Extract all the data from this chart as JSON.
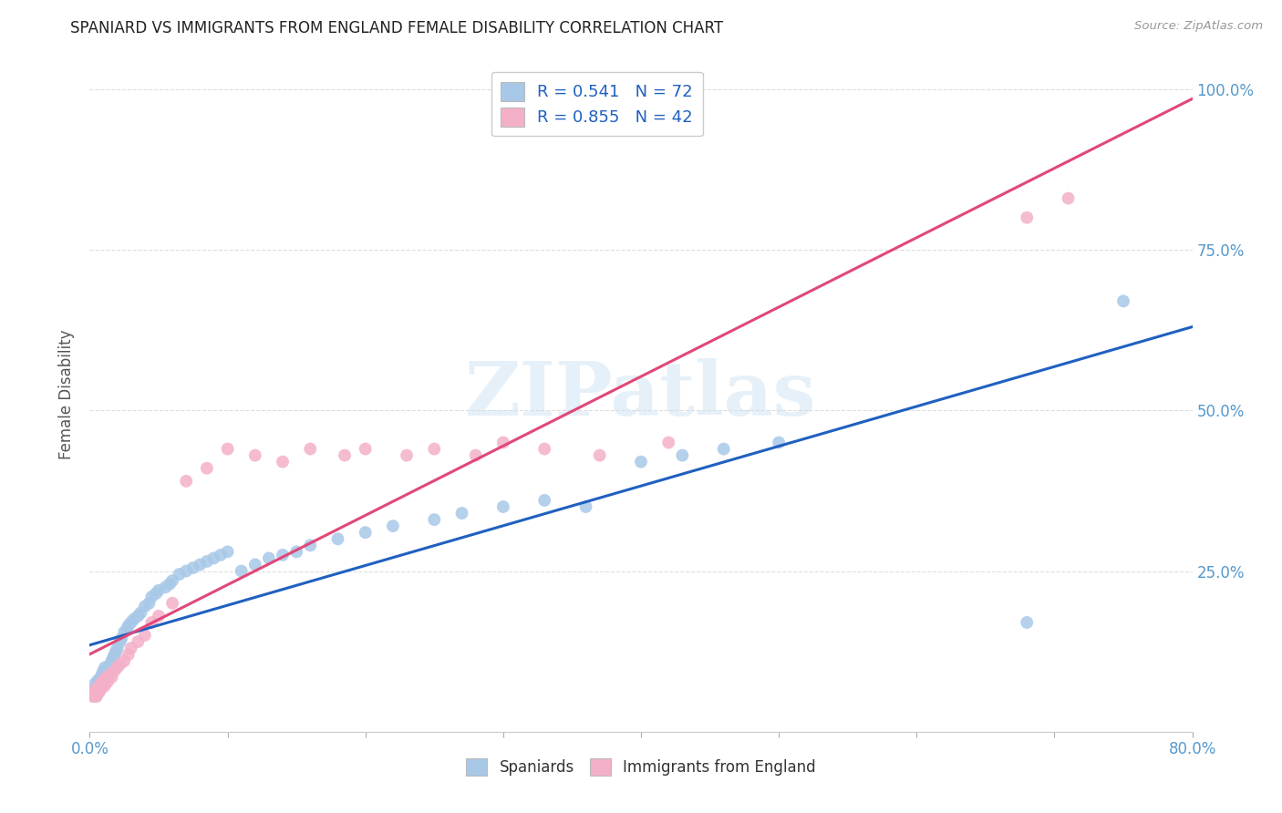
{
  "title": "SPANIARD VS IMMIGRANTS FROM ENGLAND FEMALE DISABILITY CORRELATION CHART",
  "source": "Source: ZipAtlas.com",
  "ylabel": "Female Disability",
  "xlim": [
    0.0,
    0.8
  ],
  "ylim": [
    0.0,
    1.05
  ],
  "ytick_values": [
    0.0,
    0.25,
    0.5,
    0.75,
    1.0
  ],
  "ytick_labels": [
    "",
    "25.0%",
    "50.0%",
    "75.0%",
    "100.0%"
  ],
  "xtick_values": [
    0.0,
    0.1,
    0.2,
    0.3,
    0.4,
    0.5,
    0.6,
    0.7,
    0.8
  ],
  "xtick_labels": [
    "0.0%",
    "",
    "",
    "",
    "",
    "",
    "",
    "",
    "80.0%"
  ],
  "spaniards_color": "#a8c8e8",
  "immigrants_color": "#f4b0c8",
  "spaniards_line_color": "#2060c0",
  "immigrants_line_color": "#e04878",
  "legend_R_spaniards": "0.541",
  "legend_N_spaniards": "72",
  "legend_R_immigrants": "0.855",
  "legend_N_immigrants": "42",
  "watermark": "ZIPatlas",
  "background_color": "#ffffff",
  "axis_text_color": "#5599cc",
  "title_color": "#222222",
  "ylabel_color": "#555555",
  "grid_color": "#dddddd",
  "spaniards_x": [
    0.002,
    0.003,
    0.004,
    0.004,
    0.005,
    0.005,
    0.006,
    0.006,
    0.007,
    0.007,
    0.008,
    0.008,
    0.009,
    0.009,
    0.01,
    0.01,
    0.011,
    0.011,
    0.012,
    0.013,
    0.014,
    0.015,
    0.016,
    0.017,
    0.018,
    0.019,
    0.02,
    0.022,
    0.023,
    0.025,
    0.027,
    0.028,
    0.03,
    0.032,
    0.035,
    0.037,
    0.04,
    0.043,
    0.045,
    0.048,
    0.05,
    0.055,
    0.058,
    0.06,
    0.065,
    0.07,
    0.075,
    0.08,
    0.085,
    0.09,
    0.095,
    0.1,
    0.11,
    0.12,
    0.13,
    0.14,
    0.15,
    0.16,
    0.18,
    0.2,
    0.22,
    0.25,
    0.27,
    0.3,
    0.33,
    0.36,
    0.4,
    0.43,
    0.46,
    0.5,
    0.68,
    0.75
  ],
  "spaniards_y": [
    0.06,
    0.065,
    0.055,
    0.075,
    0.06,
    0.07,
    0.062,
    0.08,
    0.065,
    0.078,
    0.068,
    0.085,
    0.072,
    0.09,
    0.075,
    0.095,
    0.08,
    0.1,
    0.085,
    0.095,
    0.1,
    0.105,
    0.11,
    0.115,
    0.12,
    0.125,
    0.13,
    0.14,
    0.145,
    0.155,
    0.16,
    0.165,
    0.17,
    0.175,
    0.18,
    0.185,
    0.195,
    0.2,
    0.21,
    0.215,
    0.22,
    0.225,
    0.23,
    0.235,
    0.245,
    0.25,
    0.255,
    0.26,
    0.265,
    0.27,
    0.275,
    0.28,
    0.25,
    0.26,
    0.27,
    0.275,
    0.28,
    0.29,
    0.3,
    0.31,
    0.32,
    0.33,
    0.34,
    0.35,
    0.36,
    0.35,
    0.42,
    0.43,
    0.44,
    0.45,
    0.17,
    0.67
  ],
  "immigrants_x": [
    0.002,
    0.003,
    0.004,
    0.005,
    0.006,
    0.007,
    0.008,
    0.009,
    0.01,
    0.011,
    0.012,
    0.013,
    0.015,
    0.016,
    0.018,
    0.02,
    0.022,
    0.025,
    0.028,
    0.03,
    0.035,
    0.04,
    0.045,
    0.05,
    0.06,
    0.07,
    0.085,
    0.1,
    0.12,
    0.14,
    0.16,
    0.185,
    0.2,
    0.23,
    0.25,
    0.28,
    0.3,
    0.33,
    0.37,
    0.42,
    0.68,
    0.71
  ],
  "immigrants_y": [
    0.055,
    0.06,
    0.065,
    0.055,
    0.07,
    0.062,
    0.075,
    0.068,
    0.08,
    0.072,
    0.085,
    0.078,
    0.09,
    0.085,
    0.095,
    0.1,
    0.105,
    0.11,
    0.12,
    0.13,
    0.14,
    0.15,
    0.17,
    0.18,
    0.2,
    0.39,
    0.41,
    0.44,
    0.43,
    0.42,
    0.44,
    0.43,
    0.44,
    0.43,
    0.44,
    0.43,
    0.45,
    0.44,
    0.43,
    0.45,
    0.8,
    0.83
  ]
}
